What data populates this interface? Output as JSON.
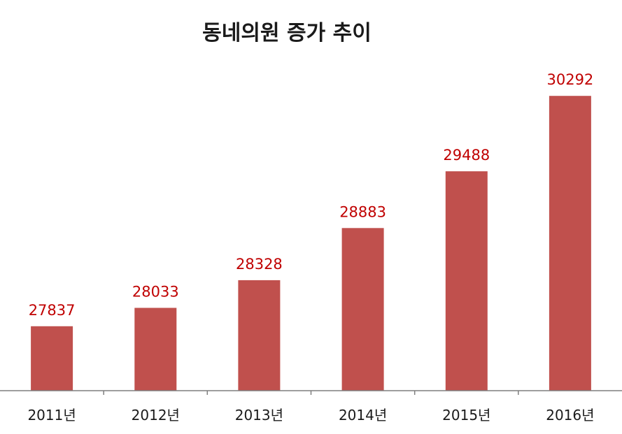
{
  "chart_data": {
    "type": "bar",
    "title": "동네의원 증가 추이",
    "categories": [
      "2011년",
      "2012년",
      "2013년",
      "2014년",
      "2015년",
      "2016년"
    ],
    "values": [
      27837,
      28033,
      28328,
      28883,
      29488,
      30292
    ],
    "xlabel": "",
    "ylabel": "",
    "ylim": [
      27150,
      30420
    ],
    "grid": false,
    "legend": "none",
    "bar_color": "#c0504d",
    "label_color": "#c00000"
  }
}
